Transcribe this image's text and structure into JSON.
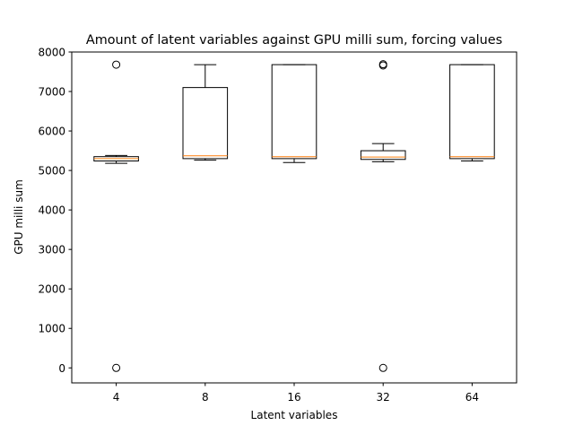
{
  "chart_data": {
    "type": "box",
    "title": "Amount of latent variables against GPU milli sum, forcing values",
    "xlabel": "Latent variables",
    "ylabel": "GPU milli sum",
    "categories": [
      "4",
      "8",
      "16",
      "32",
      "64"
    ],
    "ylim": [
      -380,
      8000
    ],
    "yticks": [
      0,
      1000,
      2000,
      3000,
      4000,
      5000,
      6000,
      7000,
      8000
    ],
    "yticklabels": [
      "0",
      "1000",
      "2000",
      "3000",
      "4000",
      "5000",
      "6000",
      "7000",
      "8000"
    ],
    "grid": false,
    "boxes": [
      {
        "label": "4",
        "whisker_low": 5180,
        "q1": 5240,
        "median": 5300,
        "q3": 5350,
        "whisker_high": 5380,
        "outliers": [
          7680,
          0
        ]
      },
      {
        "label": "8",
        "whisker_low": 5260,
        "q1": 5300,
        "median": 5370,
        "q3": 7100,
        "whisker_high": 7680,
        "outliers": []
      },
      {
        "label": "16",
        "whisker_low": 5200,
        "q1": 5300,
        "median": 5350,
        "q3": 7680,
        "whisker_high": 7680,
        "outliers": []
      },
      {
        "label": "32",
        "whisker_low": 5220,
        "q1": 5280,
        "median": 5340,
        "q3": 5500,
        "whisker_high": 5680,
        "outliers": [
          7690,
          7660,
          0
        ]
      },
      {
        "label": "64",
        "whisker_low": 5240,
        "q1": 5300,
        "median": 5350,
        "q3": 7680,
        "whisker_high": 7680,
        "outliers": []
      }
    ],
    "colors": {
      "box": "#000000",
      "median": "#ff7f0e",
      "outlier": "#000000"
    }
  }
}
